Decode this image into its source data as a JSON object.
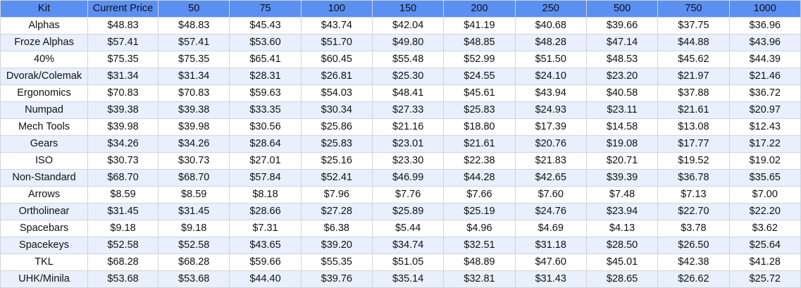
{
  "table": {
    "headers": [
      "Kit",
      "Current Price",
      "50",
      "75",
      "100",
      "150",
      "200",
      "250",
      "500",
      "750",
      "1000"
    ],
    "rows": [
      [
        "Alphas",
        "$48.83",
        "$48.83",
        "$45.43",
        "$43.74",
        "$42.04",
        "$41.19",
        "$40.68",
        "$39.66",
        "$37.75",
        "$36.96"
      ],
      [
        "Froze Alphas",
        "$57.41",
        "$57.41",
        "$53.60",
        "$51.70",
        "$49.80",
        "$48.85",
        "$48.28",
        "$47.14",
        "$44.88",
        "$43.96"
      ],
      [
        "40%",
        "$75.35",
        "$75.35",
        "$65.41",
        "$60.45",
        "$55.48",
        "$52.99",
        "$51.50",
        "$48.53",
        "$45.62",
        "$44.39"
      ],
      [
        "Dvorak/Colemak",
        "$31.34",
        "$31.34",
        "$28.31",
        "$26.81",
        "$25.30",
        "$24.55",
        "$24.10",
        "$23.20",
        "$21.97",
        "$21.46"
      ],
      [
        "Ergonomics",
        "$70.83",
        "$70.83",
        "$59.63",
        "$54.03",
        "$48.41",
        "$45.61",
        "$43.94",
        "$40.58",
        "$37.88",
        "$36.72"
      ],
      [
        "Numpad",
        "$39.38",
        "$39.38",
        "$33.35",
        "$30.34",
        "$27.33",
        "$25.83",
        "$24.93",
        "$23.11",
        "$21.61",
        "$20.97"
      ],
      [
        "Mech Tools",
        "$39.98",
        "$39.98",
        "$30.56",
        "$25.86",
        "$21.16",
        "$18.80",
        "$17.39",
        "$14.58",
        "$13.08",
        "$12.43"
      ],
      [
        "Gears",
        "$34.26",
        "$34.26",
        "$28.64",
        "$25.83",
        "$23.01",
        "$21.61",
        "$20.76",
        "$19.08",
        "$17.77",
        "$17.22"
      ],
      [
        "ISO",
        "$30.73",
        "$30.73",
        "$27.01",
        "$25.16",
        "$23.30",
        "$22.38",
        "$21.83",
        "$20.71",
        "$19.52",
        "$19.02"
      ],
      [
        "Non-Standard",
        "$68.70",
        "$68.70",
        "$57.84",
        "$52.41",
        "$46.99",
        "$44.28",
        "$42.65",
        "$39.39",
        "$36.78",
        "$35.65"
      ],
      [
        "Arrows",
        "$8.59",
        "$8.59",
        "$8.18",
        "$7.96",
        "$7.76",
        "$7.66",
        "$7.60",
        "$7.48",
        "$7.13",
        "$7.00"
      ],
      [
        "Ortholinear",
        "$31.45",
        "$31.45",
        "$28.66",
        "$27.28",
        "$25.89",
        "$25.19",
        "$24.76",
        "$23.94",
        "$22.70",
        "$22.20"
      ],
      [
        "Spacebars",
        "$9.18",
        "$9.18",
        "$7.31",
        "$6.38",
        "$5.44",
        "$4.96",
        "$4.69",
        "$4.13",
        "$3.78",
        "$3.62"
      ],
      [
        "Spacekeys",
        "$52.58",
        "$52.58",
        "$43.65",
        "$39.20",
        "$34.74",
        "$32.51",
        "$31.18",
        "$28.50",
        "$26.50",
        "$25.64"
      ],
      [
        "TKL",
        "$68.28",
        "$68.28",
        "$59.66",
        "$55.35",
        "$51.05",
        "$48.89",
        "$47.60",
        "$45.01",
        "$42.38",
        "$41.28"
      ],
      [
        "UHK/Minila",
        "$53.68",
        "$53.68",
        "$44.40",
        "$39.76",
        "$35.14",
        "$32.81",
        "$31.43",
        "$28.65",
        "$26.62",
        "$25.72"
      ]
    ]
  },
  "colors": {
    "header_background": "#5b8ff2",
    "band_light": "#ffffff",
    "band_blue": "#e8f0fe",
    "grid_line": "#d0d4da"
  }
}
